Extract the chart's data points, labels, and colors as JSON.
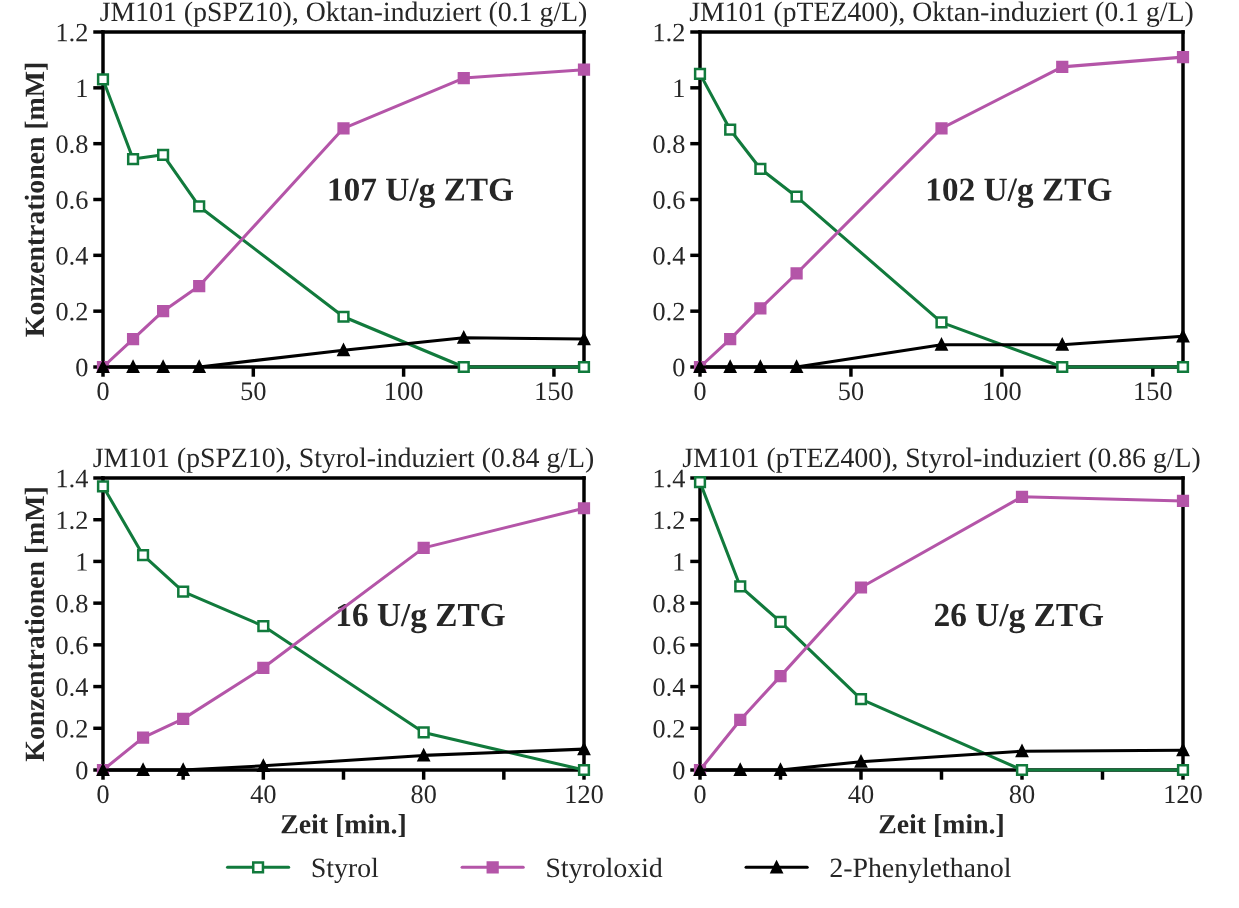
{
  "chart_data": [
    {
      "type": "line",
      "title": "JM101 (pSPZ10), Oktan-induziert (0.1 g/L)",
      "ylabel": "Konzentrationen [mM]",
      "annotations": [
        "107 U/g ZTG"
      ],
      "x": [
        0,
        10,
        20,
        32,
        80,
        120,
        160
      ],
      "xlim": [
        0,
        160
      ],
      "xticks": [
        0,
        50,
        100,
        150
      ],
      "ylim": [
        0,
        1.2
      ],
      "yticks": [
        0,
        0.2,
        0.4,
        0.6,
        0.8,
        1,
        1.2
      ],
      "grid": false,
      "legend": "bottom",
      "series": [
        {
          "name": "Styrol",
          "color": "#117a3c",
          "marker": "square",
          "values": [
            1.03,
            0.745,
            0.76,
            0.575,
            0.18,
            0,
            0
          ]
        },
        {
          "name": "Styroloxid",
          "color": "#b455a8",
          "marker": "square",
          "values": [
            0,
            0.1,
            0.2,
            0.29,
            0.855,
            1.035,
            1.065
          ]
        },
        {
          "name": "2-Phenylethanol",
          "color": "#000000",
          "marker": "triangle",
          "values": [
            0,
            0,
            0,
            0,
            0.06,
            0.105,
            0.1
          ]
        }
      ]
    },
    {
      "type": "line",
      "title": "JM101 (pTEZ400), Oktan-induziert (0.1 g/L)",
      "annotations": [
        "102 U/g ZTG"
      ],
      "x": [
        0,
        10,
        20,
        32,
        80,
        120,
        160
      ],
      "xlim": [
        0,
        160
      ],
      "xticks": [
        0,
        50,
        100,
        150
      ],
      "ylim": [
        0,
        1.2
      ],
      "yticks": [
        0,
        0.2,
        0.4,
        0.6,
        0.8,
        1,
        1.2
      ],
      "grid": false,
      "legend": "bottom",
      "series": [
        {
          "name": "Styrol",
          "color": "#117a3c",
          "marker": "square",
          "values": [
            1.05,
            0.85,
            0.71,
            0.61,
            0.16,
            0,
            0
          ]
        },
        {
          "name": "Styroloxid",
          "color": "#b455a8",
          "marker": "square",
          "values": [
            0,
            0.1,
            0.21,
            0.335,
            0.855,
            1.075,
            1.11
          ]
        },
        {
          "name": "2-Phenylethanol",
          "color": "#000000",
          "marker": "triangle",
          "values": [
            0,
            0,
            0,
            0,
            0.08,
            0.08,
            0.11
          ]
        }
      ]
    },
    {
      "type": "line",
      "title": "JM101 (pSPZ10), Styrol-induziert (0.84 g/L)",
      "xlabel": "Zeit [min.]",
      "ylabel": "Konzentrationen [mM]",
      "annotations": [
        "16 U/g ZTG"
      ],
      "x": [
        0,
        10,
        20,
        40,
        80,
        120
      ],
      "xlim": [
        0,
        120
      ],
      "xticks": [
        0,
        {
          "value": 20,
          "label": null
        },
        40,
        {
          "value": 60,
          "label": null
        },
        80,
        {
          "value": 100,
          "label": null
        },
        120
      ],
      "ylim": [
        0,
        1.4
      ],
      "yticks": [
        0,
        0.2,
        0.4,
        0.6,
        0.8,
        1,
        1.2,
        1.4
      ],
      "grid": false,
      "legend": "bottom",
      "series": [
        {
          "name": "Styrol",
          "color": "#117a3c",
          "marker": "square",
          "values": [
            1.36,
            1.03,
            0.855,
            0.69,
            0.18,
            0
          ]
        },
        {
          "name": "Styroloxid",
          "color": "#b455a8",
          "marker": "square",
          "values": [
            0,
            0.155,
            0.245,
            0.49,
            1.065,
            1.255
          ]
        },
        {
          "name": "2-Phenylethanol",
          "color": "#000000",
          "marker": "triangle",
          "values": [
            0,
            0,
            0,
            0.02,
            0.07,
            0.1
          ]
        }
      ]
    },
    {
      "type": "line",
      "title": "JM101 (pTEZ400), Styrol-induziert (0.86 g/L)",
      "xlabel": "Zeit [min.]",
      "annotations": [
        "26 U/g ZTG"
      ],
      "x": [
        0,
        10,
        20,
        40,
        80,
        120
      ],
      "xlim": [
        0,
        120
      ],
      "xticks": [
        0,
        {
          "value": 20,
          "label": null
        },
        40,
        {
          "value": 60,
          "label": null
        },
        80,
        {
          "value": 100,
          "label": null
        },
        120
      ],
      "ylim": [
        0,
        1.4
      ],
      "yticks": [
        0,
        0.2,
        0.4,
        0.6,
        0.8,
        1,
        1.2,
        1.4
      ],
      "grid": false,
      "legend": "bottom",
      "series": [
        {
          "name": "Styrol",
          "color": "#117a3c",
          "marker": "square",
          "values": [
            1.38,
            0.88,
            0.71,
            0.34,
            0,
            0
          ]
        },
        {
          "name": "Styroloxid",
          "color": "#b455a8",
          "marker": "square",
          "values": [
            0,
            0.24,
            0.45,
            0.875,
            1.31,
            1.29
          ]
        },
        {
          "name": "2-Phenylethanol",
          "color": "#000000",
          "marker": "triangle",
          "values": [
            0,
            0,
            0,
            0.04,
            0.09,
            0.095
          ]
        }
      ]
    }
  ]
}
